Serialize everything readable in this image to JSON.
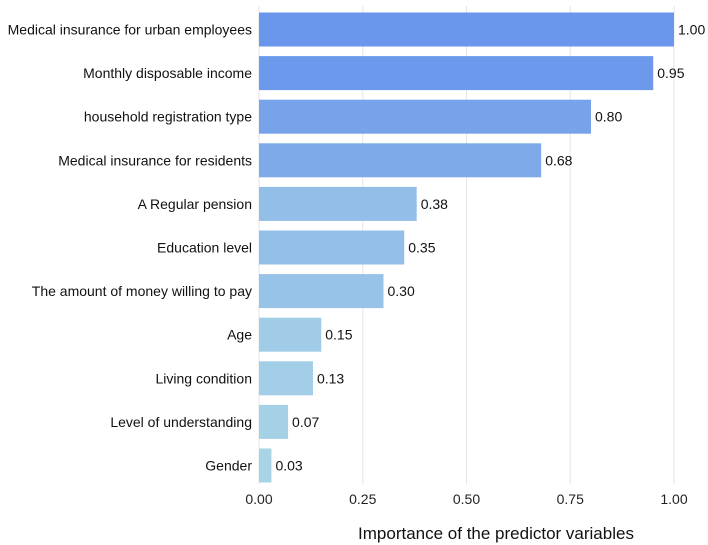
{
  "chart_data": {
    "type": "bar",
    "orientation": "horizontal",
    "title": "",
    "xlabel": "Importance of the predictor variables",
    "ylabel": "",
    "xlim": [
      0,
      1
    ],
    "xticks": [
      "0.00",
      "0.25",
      "0.50",
      "0.75",
      "1.00"
    ],
    "grid": true,
    "categories": [
      "Medical insurance for urban employees",
      "Monthly disposable income",
      "household registration type",
      "Medical insurance for residents",
      "A Regular pension",
      "Education level",
      "The amount of money willing to pay",
      "Age",
      "Living condition",
      "Level of understanding",
      "Gender"
    ],
    "values": [
      1.0,
      0.95,
      0.8,
      0.68,
      0.38,
      0.35,
      0.3,
      0.15,
      0.13,
      0.07,
      0.03
    ],
    "value_labels": [
      "1.00",
      "0.95",
      "0.80",
      "0.68",
      "0.38",
      "0.35",
      "0.30",
      "0.15",
      "0.13",
      "0.07",
      "0.03"
    ],
    "colors": {
      "high": "#6a96ec",
      "low": "#a8d4e6"
    }
  }
}
